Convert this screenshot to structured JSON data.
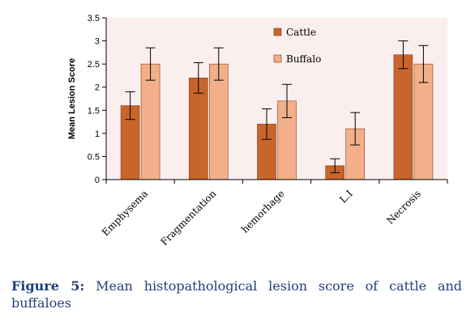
{
  "chart_data": {
    "type": "bar",
    "categories": [
      "Emphysema",
      "Fragmentation",
      "hemorhage",
      "L.I",
      "Necrosis"
    ],
    "series": [
      {
        "name": "Cattle",
        "color": "#c8652a",
        "values": [
          1.6,
          2.2,
          1.2,
          0.3,
          2.7
        ],
        "error": [
          0.3,
          0.33,
          0.33,
          0.15,
          0.3
        ]
      },
      {
        "name": "Buffalo",
        "color": "#f2b08a",
        "values": [
          2.5,
          2.5,
          1.7,
          1.1,
          2.5
        ],
        "error": [
          0.35,
          0.35,
          0.36,
          0.35,
          0.4
        ]
      }
    ],
    "ylabel": "Mean Lesion Score",
    "ylim": [
      0,
      3.5
    ],
    "yticks": [
      "0",
      "0.5",
      "1",
      "1.5",
      "2",
      "2.5",
      "3",
      "3.5"
    ],
    "legend_position": "top-right",
    "plot_background": "#fbeeee",
    "grid": false
  },
  "caption": {
    "label": "Figure 5:",
    "text": "Mean histopathological lesion score of cattle and buffaloes"
  }
}
